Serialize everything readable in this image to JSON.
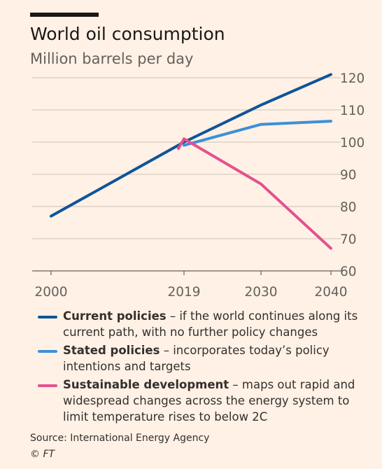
{
  "header": {
    "title": "World oil consumption",
    "subtitle": "Million barrels per day"
  },
  "chart_data": {
    "type": "line",
    "title": "World oil consumption",
    "subtitle": "Million barrels per day",
    "xlabel": "",
    "ylabel": "",
    "xlim": [
      2000,
      2040
    ],
    "ylim": [
      60,
      120
    ],
    "x_ticks": [
      2000,
      2019,
      2030,
      2040
    ],
    "y_ticks": [
      60,
      70,
      80,
      90,
      100,
      110,
      120
    ],
    "grid": "horizontal",
    "y_axis_side": "right",
    "legend_position": "bottom",
    "series": [
      {
        "name": "Current policies",
        "color": "#0f5499",
        "points": [
          [
            2000,
            77
          ],
          [
            2019,
            100
          ],
          [
            2030,
            111.5
          ],
          [
            2040,
            121
          ]
        ]
      },
      {
        "name": "Stated policies",
        "color": "#3d8fd6",
        "points": [
          [
            2019,
            99
          ],
          [
            2030,
            105.5
          ],
          [
            2040,
            106.5
          ]
        ]
      },
      {
        "name": "Sustainable development",
        "color": "#e5508e",
        "points": [
          [
            2018.2,
            98
          ],
          [
            2019,
            101
          ],
          [
            2030,
            87
          ],
          [
            2040,
            67
          ]
        ]
      }
    ]
  },
  "legend": [
    {
      "name": "Current policies",
      "description": " – if the world continues along its current path, with no further policy changes",
      "color": "#0f5499"
    },
    {
      "name": "Stated policies",
      "description": " – incorporates today’s policy intentions and targets",
      "color": "#3d8fd6"
    },
    {
      "name": "Sustainable development",
      "description": " – maps out rapid and widespread changes across the energy system to limit temperature rises to below 2C",
      "color": "#e5508e"
    }
  ],
  "footer": {
    "source": "Source: International Energy Agency",
    "credit": "© FT"
  }
}
